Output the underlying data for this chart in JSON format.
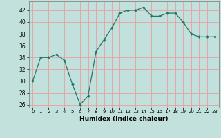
{
  "x": [
    0,
    1,
    2,
    3,
    4,
    5,
    6,
    7,
    8,
    9,
    10,
    11,
    12,
    13,
    14,
    15,
    16,
    17,
    18,
    19,
    20,
    21,
    22,
    23
  ],
  "y": [
    30,
    34,
    34,
    34.5,
    33.5,
    29.5,
    26,
    27.5,
    35,
    37,
    39,
    41.5,
    42,
    42,
    42.5,
    41,
    41,
    41.5,
    41.5,
    40,
    38,
    37.5,
    37.5,
    37.5
  ],
  "line_color": "#1a7a6e",
  "marker": "D",
  "marker_size": 2.0,
  "bg_color": "#c2e0dc",
  "grid_color": "#e8a0a0",
  "xlabel": "Humidex (Indice chaleur)",
  "xlim": [
    -0.5,
    23.5
  ],
  "ylim": [
    25.5,
    43.5
  ],
  "yticks": [
    26,
    28,
    30,
    32,
    34,
    36,
    38,
    40,
    42
  ],
  "xtick_labels": [
    "0",
    "1",
    "2",
    "3",
    "4",
    "5",
    "6",
    "7",
    "8",
    "9",
    "10",
    "11",
    "12",
    "13",
    "14",
    "15",
    "16",
    "17",
    "18",
    "19",
    "20",
    "21",
    "22",
    "23"
  ]
}
